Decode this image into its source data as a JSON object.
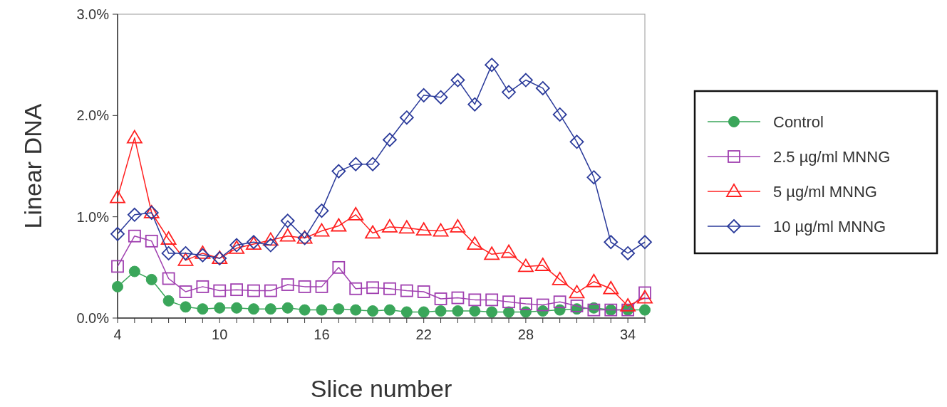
{
  "chart_data": {
    "type": "line",
    "xlabel": "Slice number",
    "ylabel": "Linear DNA",
    "x": [
      4,
      5,
      6,
      7,
      8,
      9,
      10,
      11,
      12,
      13,
      14,
      15,
      16,
      17,
      18,
      19,
      20,
      21,
      22,
      23,
      24,
      25,
      26,
      27,
      28,
      29,
      30,
      31,
      32,
      33,
      34,
      35
    ],
    "xlim": [
      4,
      35
    ],
    "xticks": [
      4,
      {
        "value": 5,
        "label": null
      },
      {
        "value": 6,
        "label": null
      },
      {
        "value": 7,
        "label": null
      },
      {
        "value": 8,
        "label": null
      },
      {
        "value": 9,
        "label": null
      },
      10,
      {
        "value": 11,
        "label": null
      },
      {
        "value": 12,
        "label": null
      },
      {
        "value": 13,
        "label": null
      },
      {
        "value": 14,
        "label": null
      },
      {
        "value": 15,
        "label": null
      },
      16,
      {
        "value": 17,
        "label": null
      },
      {
        "value": 18,
        "label": null
      },
      {
        "value": 19,
        "label": null
      },
      {
        "value": 20,
        "label": null
      },
      {
        "value": 21,
        "label": null
      },
      22,
      {
        "value": 23,
        "label": null
      },
      {
        "value": 24,
        "label": null
      },
      {
        "value": 25,
        "label": null
      },
      {
        "value": 26,
        "label": null
      },
      {
        "value": 27,
        "label": null
      },
      28,
      {
        "value": 29,
        "label": null
      },
      {
        "value": 30,
        "label": null
      },
      {
        "value": 31,
        "label": null
      },
      {
        "value": 32,
        "label": null
      },
      {
        "value": 33,
        "label": null
      },
      34,
      {
        "value": 35,
        "label": null
      }
    ],
    "ylim": [
      0,
      3
    ],
    "yticks": [
      {
        "value": 0,
        "label": "0.0%"
      },
      {
        "value": 1,
        "label": "1.0%"
      },
      {
        "value": 2,
        "label": "2.0%"
      },
      {
        "value": 3,
        "label": "3.0%"
      }
    ],
    "grid": false,
    "legend": "right",
    "line_style": "solid",
    "series": [
      {
        "name": "Control",
        "color": "#3aa65a",
        "marker": "circle",
        "values": [
          0.31,
          0.46,
          0.38,
          0.17,
          0.11,
          0.09,
          0.1,
          0.1,
          0.09,
          0.09,
          0.1,
          0.08,
          0.08,
          0.09,
          0.08,
          0.07,
          0.08,
          0.06,
          0.06,
          0.07,
          0.07,
          0.07,
          0.06,
          0.06,
          0.06,
          0.07,
          0.08,
          0.09,
          0.1,
          0.08,
          0.08,
          0.08
        ]
      },
      {
        "name": "2.5 µg/ml MNNG",
        "color": "#a040b0",
        "marker": "square",
        "values": [
          0.51,
          0.81,
          0.76,
          0.39,
          0.26,
          0.31,
          0.27,
          0.28,
          0.27,
          0.27,
          0.33,
          0.31,
          0.31,
          0.5,
          0.29,
          0.3,
          0.29,
          0.27,
          0.26,
          0.19,
          0.2,
          0.18,
          0.18,
          0.16,
          0.14,
          0.13,
          0.16,
          0.12,
          0.08,
          0.08,
          0.08,
          0.25
        ]
      },
      {
        "name": "5 µg/ml MNNG",
        "color": "#ff2020",
        "marker": "triangle",
        "values": [
          1.19,
          1.78,
          1.04,
          0.78,
          0.57,
          0.64,
          0.59,
          0.69,
          0.73,
          0.77,
          0.81,
          0.79,
          0.86,
          0.91,
          1.02,
          0.84,
          0.9,
          0.89,
          0.87,
          0.86,
          0.9,
          0.73,
          0.63,
          0.65,
          0.51,
          0.52,
          0.38,
          0.25,
          0.36,
          0.29,
          0.12,
          0.2
        ]
      },
      {
        "name": "10 µg/ml MNNG",
        "color": "#2a3a9a",
        "marker": "diamond",
        "values": [
          0.83,
          1.02,
          1.04,
          0.64,
          0.64,
          0.62,
          0.59,
          0.72,
          0.75,
          0.72,
          0.96,
          0.79,
          1.06,
          1.45,
          1.52,
          1.52,
          1.76,
          1.98,
          2.2,
          2.18,
          2.35,
          2.11,
          2.5,
          2.23,
          2.35,
          2.27,
          2.01,
          1.74,
          1.39,
          0.75,
          0.64,
          0.75
        ]
      }
    ]
  }
}
